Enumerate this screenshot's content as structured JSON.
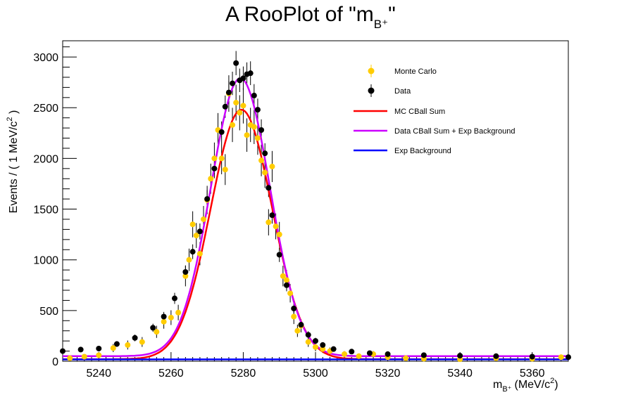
{
  "title_text": "A RooPlot of \"m",
  "title_sub": "B⁺",
  "title_close": "\"",
  "chart_data": {
    "type": "scatter",
    "xlabel": {
      "main": "m",
      "sub": "B⁺",
      "unit": "(MeV/c",
      "sup": "2",
      "close": ")"
    },
    "ylabel": {
      "main": "Events / ( 1 MeV/c",
      "sup": "2",
      "close": " )"
    },
    "xlim": [
      5230,
      5370
    ],
    "ylim": [
      0,
      3160
    ],
    "x_ticks": [
      "5240",
      "5260",
      "5280",
      "5300",
      "5320",
      "5340",
      "5360"
    ],
    "y_ticks": [
      "0",
      "500",
      "1000",
      "1500",
      "2000",
      "2500",
      "3000"
    ],
    "legend_position": "top-right",
    "legend": [
      {
        "label": "Monte Carlo",
        "kind": "point",
        "color": "#ffcc00"
      },
      {
        "label": "Data",
        "kind": "point",
        "color": "#000000"
      },
      {
        "label": "MC CBall Sum",
        "kind": "line",
        "color": "#ff0000"
      },
      {
        "label": "Data CBall Sum + Exp Background",
        "kind": "line",
        "color": "#cc00ff"
      },
      {
        "label": "Exp Background",
        "kind": "line",
        "color": "#0000ff"
      }
    ],
    "series": [
      {
        "name": "Monte Carlo",
        "kind": "points",
        "color": "#ffcc00",
        "x": [
          5232,
          5236,
          5240,
          5244,
          5248,
          5252,
          5256,
          5258,
          5260,
          5262,
          5264,
          5265,
          5266,
          5267,
          5268,
          5269,
          5270,
          5271,
          5272,
          5273,
          5274,
          5275,
          5276,
          5277,
          5278,
          5279,
          5280,
          5281,
          5282,
          5283,
          5284,
          5285,
          5286,
          5287,
          5288,
          5289,
          5290,
          5291,
          5292,
          5293,
          5294,
          5295,
          5296,
          5298,
          5300,
          5302,
          5304,
          5308,
          5312,
          5316,
          5320,
          5325,
          5330,
          5340,
          5350,
          5360,
          5368
        ],
        "y": [
          30,
          45,
          60,
          130,
          160,
          190,
          290,
          390,
          430,
          480,
          840,
          1000,
          1350,
          1240,
          1060,
          1400,
          1590,
          1800,
          2000,
          2280,
          2000,
          1890,
          2640,
          2330,
          2550,
          2450,
          2520,
          2230,
          2330,
          2310,
          2200,
          1980,
          1860,
          1370,
          1920,
          1330,
          1250,
          840,
          800,
          670,
          440,
          300,
          350,
          190,
          140,
          120,
          100,
          70,
          50,
          70,
          40,
          30,
          25,
          20,
          30,
          25,
          40
        ]
      },
      {
        "name": "Data",
        "kind": "points",
        "color": "#000000",
        "x": [
          5230,
          5235,
          5240,
          5245,
          5250,
          5255,
          5258,
          5261,
          5264,
          5266,
          5268,
          5270,
          5272,
          5274,
          5275,
          5276,
          5277,
          5278,
          5279,
          5280,
          5281,
          5282,
          5283,
          5284,
          5285,
          5286,
          5287,
          5288,
          5290,
          5292,
          5294,
          5296,
          5298,
          5300,
          5302,
          5305,
          5310,
          5315,
          5320,
          5330,
          5340,
          5350,
          5360,
          5370
        ],
        "y": [
          100,
          115,
          125,
          170,
          230,
          330,
          440,
          620,
          880,
          1080,
          1280,
          1600,
          1900,
          2260,
          2510,
          2650,
          2740,
          2940,
          2770,
          2790,
          2830,
          2840,
          2620,
          2480,
          2280,
          2050,
          1710,
          1440,
          1050,
          750,
          520,
          360,
          260,
          200,
          160,
          120,
          95,
          80,
          70,
          60,
          55,
          50,
          45,
          40
        ]
      },
      {
        "name": "MC CBall Sum",
        "kind": "curve",
        "color": "#ff0000",
        "peak": 2460,
        "mean": 5279.5,
        "sigma": 8.5,
        "base": 20
      },
      {
        "name": "Data CBall Sum + Exp Background",
        "kind": "curve",
        "color": "#cc00ff",
        "peak": 2740,
        "mean": 5279.2,
        "sigma": 8.2,
        "base": 50
      },
      {
        "name": "Exp Background",
        "kind": "curve",
        "color": "#0000ff",
        "peak": 0,
        "mean": 5280,
        "sigma": 1,
        "base": 18
      }
    ]
  }
}
